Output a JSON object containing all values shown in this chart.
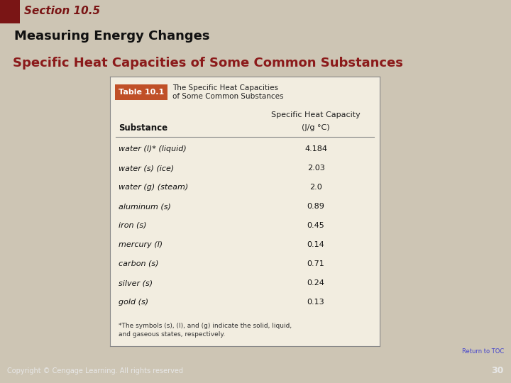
{
  "section_label": "Section 10.5",
  "header_title": "Measuring Energy Changes",
  "slide_title": "Specific Heat Capacities of Some Common Substances",
  "table_label": "Table 10.1",
  "table_caption_line1": "The Specific Heat Capacities",
  "table_caption_line2": "of Some Common Substances",
  "col_header1": "Specific Heat Capacity",
  "col_header2": "(J/g °C)",
  "col_label": "Substance",
  "rows": [
    [
      "water (l)* (liquid)",
      "4.184"
    ],
    [
      "water (s) (ice)",
      "2.03"
    ],
    [
      "water (g) (steam)",
      "2.0"
    ],
    [
      "aluminum (s)",
      "0.89"
    ],
    [
      "iron (s)",
      "0.45"
    ],
    [
      "mercury (l)",
      "0.14"
    ],
    [
      "carbon (s)",
      "0.71"
    ],
    [
      "silver (s)",
      "0.24"
    ],
    [
      "gold (s)",
      "0.13"
    ]
  ],
  "footnote_line1": "*The symbols (s), (l), and (g) indicate the solid, liquid,",
  "footnote_line2": "and gaseous states, respectively.",
  "copyright": "Copyright © Cengage Learning. All rights reserved",
  "page_num": "30",
  "return_toc": "Return to TOC",
  "bg_color": "#cdc5b4",
  "header_bg": "#7a8c2e",
  "section_bar_color": "#7a1515",
  "slide_title_color": "#8b1a1a",
  "table_bg": "#f2ede0",
  "table_border_color": "#888888",
  "table_label_bg": "#c05028",
  "table_label_text": "#ffffff",
  "footer_bg": "#8c8c84",
  "footer_text_color": "#e8e8e8",
  "return_toc_color": "#4444cc"
}
